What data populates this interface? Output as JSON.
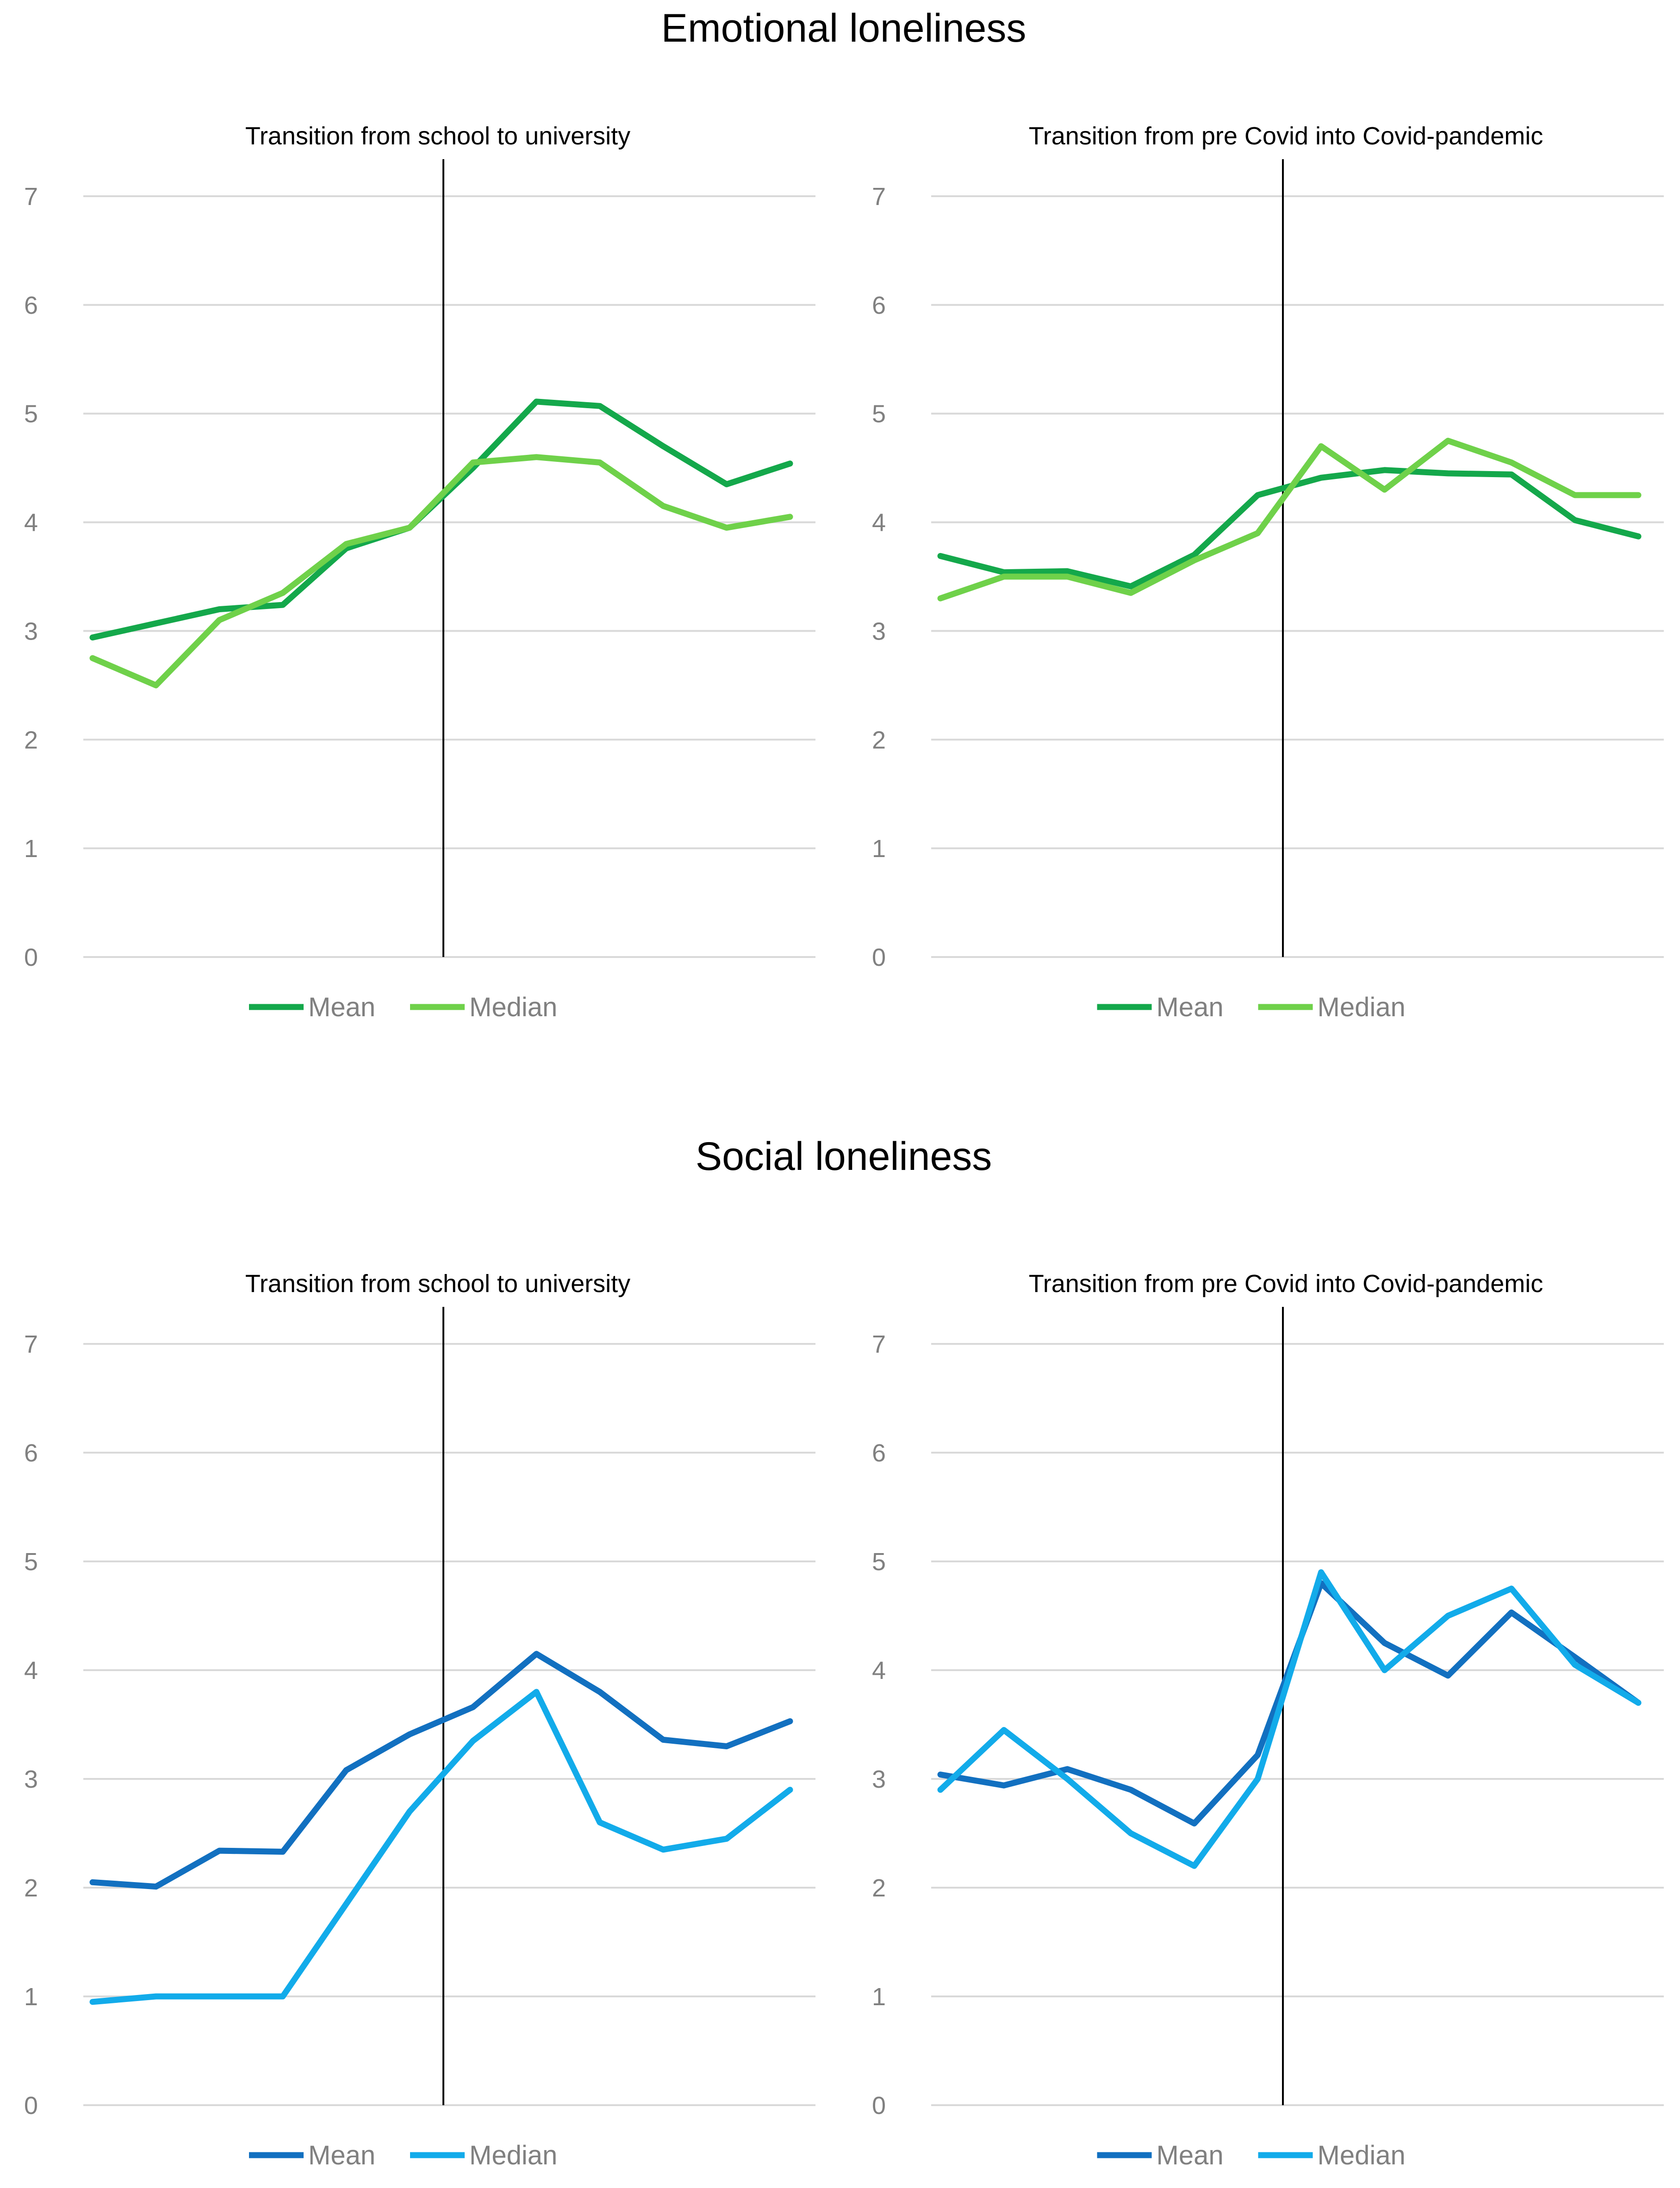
{
  "sections": [
    {
      "title": "Emotional loneliness",
      "colors": {
        "mean": "#14A84B",
        "median": "#6FD14A"
      },
      "panels": [
        {
          "title": "Transition from school to university"
        },
        {
          "title": "Transition from pre Covid into Covid-pandemic"
        }
      ]
    },
    {
      "title": "Social loneliness",
      "colors": {
        "mean": "#1270C0",
        "median": "#12ABEA"
      },
      "panels": [
        {
          "title": "Transition from school to university"
        },
        {
          "title": "Transition from pre Covid into Covid-pandemic"
        }
      ]
    }
  ],
  "chart_data": [
    {
      "type": "line",
      "section": "Emotional loneliness",
      "title": "Transition from school to university",
      "x": [
        1,
        2,
        3,
        4,
        5,
        6,
        7,
        8,
        9,
        10,
        11,
        12
      ],
      "transition_after_index": 5.5,
      "ylim": [
        0,
        7
      ],
      "yticks": [
        "0",
        "1",
        "2",
        "3",
        "4",
        "5",
        "6",
        "7"
      ],
      "grid": true,
      "legend": "bottom",
      "series": [
        {
          "name": "Mean",
          "values": [
            2.94,
            3.07,
            3.2,
            3.24,
            3.76,
            3.95,
            4.5,
            5.11,
            5.07,
            4.7,
            4.35,
            4.54
          ]
        },
        {
          "name": "Median",
          "values": [
            2.75,
            2.5,
            3.1,
            3.35,
            3.8,
            3.95,
            4.55,
            4.6,
            4.55,
            4.15,
            3.95,
            4.05
          ]
        }
      ]
    },
    {
      "type": "line",
      "section": "Emotional loneliness",
      "title": "Transition from pre Covid into Covid-pandemic",
      "x": [
        1,
        2,
        3,
        4,
        5,
        6,
        7,
        8,
        9,
        10,
        11,
        12
      ],
      "transition_after_index": 5.5,
      "ylim": [
        0,
        7
      ],
      "yticks": [
        "0",
        "1",
        "2",
        "3",
        "4",
        "5",
        "6",
        "7"
      ],
      "grid": true,
      "legend": "bottom",
      "series": [
        {
          "name": "Mean",
          "values": [
            3.69,
            3.54,
            3.55,
            3.41,
            3.7,
            4.25,
            4.41,
            4.48,
            4.45,
            4.44,
            4.02,
            3.87
          ]
        },
        {
          "name": "Median",
          "values": [
            3.3,
            3.5,
            3.5,
            3.35,
            3.65,
            3.9,
            4.7,
            4.3,
            4.75,
            4.55,
            4.25,
            4.25
          ]
        }
      ]
    },
    {
      "type": "line",
      "section": "Social loneliness",
      "title": "Transition from school to university",
      "x": [
        1,
        2,
        3,
        4,
        5,
        6,
        7,
        8,
        9,
        10,
        11,
        12
      ],
      "transition_after_index": 5.5,
      "ylim": [
        0,
        7
      ],
      "yticks": [
        "0",
        "1",
        "2",
        "3",
        "4",
        "5",
        "6",
        "7"
      ],
      "grid": true,
      "legend": "bottom",
      "series": [
        {
          "name": "Mean",
          "values": [
            2.05,
            2.01,
            2.34,
            2.33,
            3.08,
            3.41,
            3.66,
            4.15,
            3.8,
            3.36,
            3.3,
            3.53
          ]
        },
        {
          "name": "Median",
          "values": [
            0.95,
            1.0,
            1.0,
            1.0,
            1.85,
            2.7,
            3.35,
            3.8,
            2.6,
            2.35,
            2.45,
            2.9
          ]
        }
      ]
    },
    {
      "type": "line",
      "section": "Social loneliness",
      "title": "Transition from pre Covid into Covid-pandemic",
      "x": [
        1,
        2,
        3,
        4,
        5,
        6,
        7,
        8,
        9,
        10,
        11,
        12
      ],
      "transition_after_index": 5.5,
      "ylim": [
        0,
        7
      ],
      "yticks": [
        "0",
        "1",
        "2",
        "3",
        "4",
        "5",
        "6",
        "7"
      ],
      "grid": true,
      "legend": "bottom",
      "series": [
        {
          "name": "Mean",
          "values": [
            3.04,
            2.94,
            3.09,
            2.9,
            2.59,
            3.22,
            4.8,
            4.25,
            3.95,
            4.53,
            4.12,
            3.7
          ]
        },
        {
          "name": "Median",
          "values": [
            2.9,
            3.45,
            3.0,
            2.5,
            2.2,
            3.0,
            4.9,
            4.0,
            4.5,
            4.75,
            4.05,
            3.7
          ]
        }
      ]
    }
  ]
}
